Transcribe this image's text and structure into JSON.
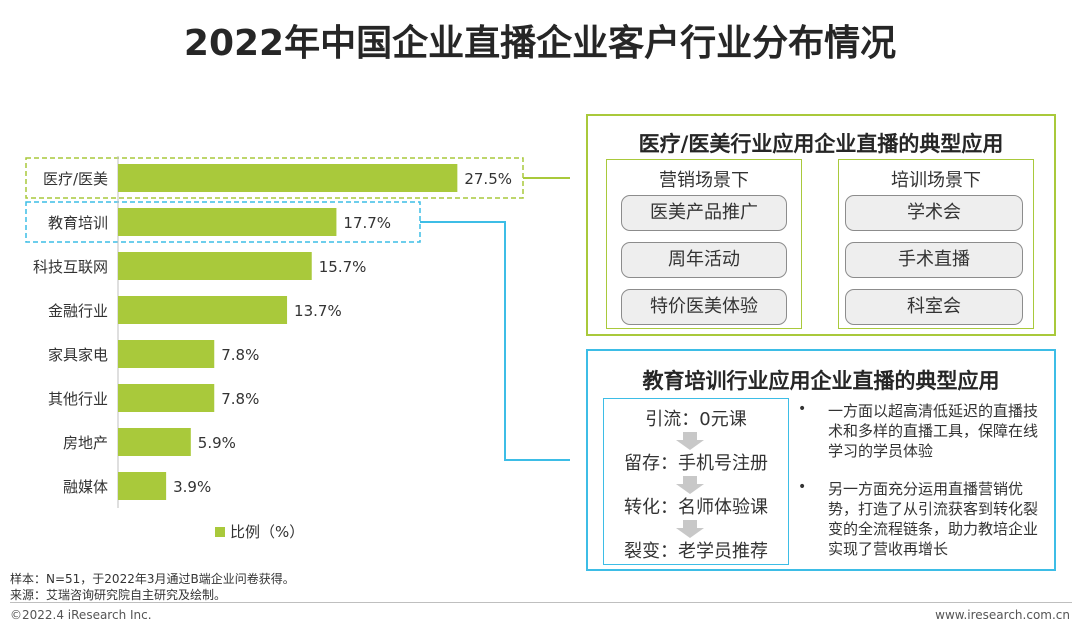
{
  "title": "2022年中国企业直播企业客户行业分布情况",
  "chart_data": {
    "type": "bar",
    "orientation": "horizontal",
    "categories": [
      "医疗/医美",
      "教育培训",
      "科技互联网",
      "金融行业",
      "家具家电",
      "其他行业",
      "房地产",
      "融媒体"
    ],
    "values": [
      27.5,
      17.7,
      15.7,
      13.7,
      7.8,
      7.8,
      5.9,
      3.9
    ],
    "value_labels": [
      "27.5%",
      "17.7%",
      "15.7%",
      "13.7%",
      "7.8%",
      "7.8%",
      "5.9%",
      "3.9%"
    ],
    "series": [
      {
        "name": "比例（%）",
        "values": [
          27.5,
          17.7,
          15.7,
          13.7,
          7.8,
          7.8,
          5.9,
          3.9
        ]
      }
    ],
    "bar_color": "#a9c93b",
    "highlight_colors": {
      "医疗/医美": "#a9c93b",
      "教育培训": "#3dbde6"
    },
    "legend_position": "bottom",
    "grid": false
  },
  "medical_panel": {
    "title": "医疗/医美行业应用企业直播的典型应用",
    "marketing": {
      "heading": "营销场景下",
      "items": [
        "医美产品推广",
        "周年活动",
        "特价医美体验"
      ]
    },
    "training": {
      "heading": "培训场景下",
      "items": [
        "学术会",
        "手术直播",
        "科室会"
      ]
    }
  },
  "education_panel": {
    "title": "教育培训行业应用企业直播的典型应用",
    "flow": [
      "引流：0元课",
      "留存：手机号注册",
      "转化：名师体验课",
      "裂变：老学员推荐"
    ],
    "bullets": [
      "一方面以超高清低延迟的直播技术和多样的直播工具，保障在线学习的学员体验",
      "另一方面充分运用直播营销优势，打造了从引流获客到转化裂变的全流程链条，助力教培企业实现了营收再增长"
    ],
    "bullet_marks": [
      "•",
      "•"
    ]
  },
  "notes": {
    "sample": "样本：N=51，于2022年3月通过B端企业问卷获得。",
    "source": "来源：艾瑞咨询研究院自主研究及绘制。"
  },
  "footer": {
    "left": "©2022.4 iResearch Inc.",
    "right": "www.iresearch.com.cn"
  },
  "colors": {
    "accent_green": "#a9c93b",
    "accent_blue": "#3dbde6",
    "pill_bg": "#eeeeee"
  }
}
